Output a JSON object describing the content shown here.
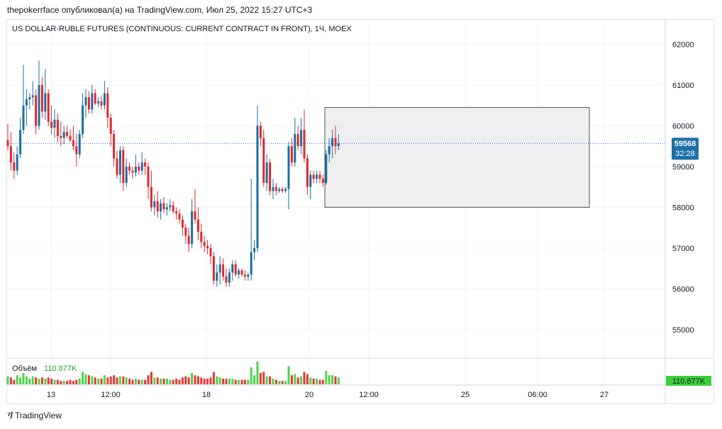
{
  "header": {
    "author": "thepokerrface",
    "published_text": "опубликовал(а) на TradingView.com, Июл 25, 2022 15:27 UTC+3"
  },
  "footer": {
    "logo_text": "TradingView"
  },
  "colors": {
    "up": "#26a69a",
    "up_body": "#1a6fa0",
    "down": "#e0282e",
    "grid": "#f0f3fa",
    "box_fill": "#e8e8ec",
    "box_stroke": "#555555",
    "price_line": "#2962ff",
    "price_tag": "#1e6fa8",
    "volume_up": "#4ed34e",
    "volume_down": "#e53935"
  },
  "chart_data": {
    "type": "candlestick",
    "title": "US DOLLAR-RUBLE FUTURES (CONTINUOUS: CURRENT CONTRACT IN FRONT), 1Ч, MOEX",
    "y_ticks": [
      62000,
      61000,
      60000,
      59000,
      58000,
      57000,
      56000,
      55000
    ],
    "ylim": [
      54300,
      62600
    ],
    "x_ticks": [
      "13",
      "12:00",
      "18",
      "20",
      "12:00",
      "25",
      "06:00",
      "27"
    ],
    "last_price": "59568",
    "countdown": "32:28",
    "volume_label": "Объём",
    "volume_value": "110.877K",
    "volume_tag": "110.877K",
    "box": {
      "y_top": 60450,
      "y_bottom": 58000
    },
    "candles": [
      [
        59650,
        60050,
        59400,
        59500
      ],
      [
        59500,
        59850,
        58900,
        59100
      ],
      [
        59100,
        59350,
        58700,
        58900
      ],
      [
        58900,
        59500,
        58800,
        59300
      ],
      [
        59300,
        60200,
        59200,
        59900
      ],
      [
        59900,
        61500,
        59800,
        60500
      ],
      [
        60500,
        60900,
        60000,
        60650
      ],
      [
        60650,
        60800,
        60400,
        60700
      ],
      [
        60700,
        61100,
        60500,
        60750
      ],
      [
        60750,
        60900,
        59800,
        60000
      ],
      [
        60000,
        61600,
        59900,
        61000
      ],
      [
        61000,
        61200,
        60200,
        60350
      ],
      [
        60350,
        61400,
        60150,
        60800
      ],
      [
        60800,
        60900,
        60000,
        60100
      ],
      [
        60100,
        60500,
        59800,
        59950
      ],
      [
        59950,
        60400,
        59700,
        60150
      ],
      [
        60150,
        60300,
        59600,
        59750
      ],
      [
        59750,
        60100,
        59500,
        59700
      ],
      [
        59700,
        60000,
        59550,
        59850
      ],
      [
        59850,
        60000,
        59700,
        59750
      ],
      [
        59750,
        59900,
        59600,
        59650
      ],
      [
        59650,
        60000,
        59400,
        59500
      ],
      [
        59500,
        59800,
        59000,
        59300
      ],
      [
        59300,
        59900,
        59200,
        59800
      ],
      [
        59800,
        60800,
        59700,
        60500
      ],
      [
        60500,
        60900,
        60200,
        60700
      ],
      [
        60700,
        60850,
        60300,
        60400
      ],
      [
        60400,
        61000,
        60300,
        60800
      ],
      [
        60800,
        60900,
        60500,
        60550
      ],
      [
        60550,
        60700,
        60450,
        60600
      ],
      [
        60600,
        60750,
        60400,
        60500
      ],
      [
        60500,
        61100,
        60400,
        60800
      ],
      [
        60800,
        60950,
        59950,
        60200
      ],
      [
        60200,
        60300,
        59500,
        59800
      ],
      [
        59800,
        59900,
        59000,
        59200
      ],
      [
        59200,
        59400,
        58700,
        58800
      ],
      [
        58800,
        59500,
        58600,
        59400
      ],
      [
        59400,
        59500,
        58400,
        58600
      ],
      [
        58600,
        59200,
        58500,
        59000
      ],
      [
        59000,
        59100,
        58800,
        58900
      ],
      [
        58900,
        59000,
        58700,
        58850
      ],
      [
        58850,
        59300,
        58750,
        59000
      ],
      [
        59000,
        59100,
        58800,
        58900
      ],
      [
        58900,
        59350,
        58800,
        59100
      ],
      [
        59100,
        59200,
        58800,
        59000
      ],
      [
        59000,
        59100,
        58200,
        58500
      ],
      [
        58500,
        58900,
        57900,
        58000
      ],
      [
        58000,
        58300,
        57800,
        58150
      ],
      [
        58150,
        58400,
        57750,
        57900
      ],
      [
        57900,
        58200,
        57700,
        58100
      ],
      [
        58100,
        58250,
        57850,
        57950
      ],
      [
        57950,
        58100,
        57800,
        58000
      ],
      [
        58000,
        58200,
        57900,
        58050
      ],
      [
        58050,
        58150,
        57850,
        57900
      ],
      [
        57900,
        58000,
        57700,
        57850
      ],
      [
        57850,
        57950,
        57600,
        57700
      ],
      [
        57700,
        57800,
        57300,
        57500
      ],
      [
        57500,
        57600,
        57100,
        57300
      ],
      [
        57300,
        57500,
        56900,
        57100
      ],
      [
        57100,
        58200,
        57000,
        57900
      ],
      [
        57900,
        58450,
        57600,
        57700
      ],
      [
        57700,
        58000,
        57200,
        57400
      ],
      [
        57400,
        57600,
        57000,
        57150
      ],
      [
        57150,
        57300,
        56900,
        57050
      ],
      [
        57050,
        57200,
        56850,
        57000
      ],
      [
        57000,
        57100,
        56600,
        56800
      ],
      [
        56800,
        56900,
        56100,
        56200
      ],
      [
        56200,
        56600,
        56050,
        56400
      ],
      [
        56400,
        56800,
        56100,
        56600
      ],
      [
        56600,
        56750,
        56200,
        56300
      ],
      [
        56300,
        56500,
        56050,
        56150
      ],
      [
        56150,
        56500,
        56050,
        56400
      ],
      [
        56400,
        56700,
        56200,
        56600
      ],
      [
        56600,
        56700,
        56300,
        56350
      ],
      [
        56350,
        56500,
        56250,
        56450
      ],
      [
        56450,
        56500,
        56300,
        56350
      ],
      [
        56350,
        56450,
        56200,
        56300
      ],
      [
        56300,
        56400,
        56200,
        56350
      ],
      [
        56350,
        58700,
        56200,
        56900
      ],
      [
        56900,
        57200,
        56700,
        57000
      ],
      [
        57000,
        60500,
        56900,
        60000
      ],
      [
        60000,
        60100,
        59500,
        59700
      ],
      [
        59700,
        59900,
        58500,
        58600
      ],
      [
        58600,
        59300,
        58400,
        59100
      ],
      [
        59100,
        59200,
        58300,
        58400
      ],
      [
        58400,
        58700,
        58200,
        58500
      ],
      [
        58500,
        58600,
        58300,
        58400
      ],
      [
        58400,
        58500,
        58350,
        58450
      ],
      [
        58450,
        58500,
        58350,
        58400
      ],
      [
        58400,
        58500,
        58350,
        58450
      ],
      [
        58450,
        59600,
        57950,
        59500
      ],
      [
        59500,
        59700,
        59000,
        59100
      ],
      [
        59100,
        60200,
        59000,
        59800
      ],
      [
        59800,
        60000,
        59400,
        59500
      ],
      [
        59500,
        60200,
        59300,
        59900
      ],
      [
        59900,
        60400,
        59100,
        59200
      ],
      [
        59200,
        59300,
        58300,
        58500
      ],
      [
        58500,
        58900,
        58200,
        58800
      ],
      [
        58800,
        58900,
        58600,
        58700
      ],
      [
        58700,
        58900,
        58600,
        58800
      ],
      [
        58800,
        58900,
        58600,
        58700
      ],
      [
        58700,
        58800,
        58500,
        58600
      ],
      [
        58600,
        59400,
        58550,
        59300
      ],
      [
        59300,
        59700,
        59100,
        59500
      ],
      [
        59500,
        59900,
        59200,
        59700
      ],
      [
        59700,
        60000,
        59300,
        59500
      ],
      [
        59500,
        59800,
        59400,
        59568
      ]
    ],
    "volumes": [
      [
        0.35,
        "up"
      ],
      [
        0.3,
        "down"
      ],
      [
        0.2,
        "down"
      ],
      [
        0.4,
        "up"
      ],
      [
        0.3,
        "up"
      ],
      [
        0.5,
        "up"
      ],
      [
        0.35,
        "up"
      ],
      [
        0.25,
        "up"
      ],
      [
        0.35,
        "up"
      ],
      [
        0.3,
        "down"
      ],
      [
        0.25,
        "up"
      ],
      [
        0.3,
        "down"
      ],
      [
        0.25,
        "up"
      ],
      [
        0.3,
        "down"
      ],
      [
        0.25,
        "down"
      ],
      [
        0.2,
        "up"
      ],
      [
        0.2,
        "down"
      ],
      [
        0.15,
        "down"
      ],
      [
        0.15,
        "up"
      ],
      [
        0.15,
        "down"
      ],
      [
        0.2,
        "down"
      ],
      [
        0.15,
        "down"
      ],
      [
        0.2,
        "down"
      ],
      [
        0.25,
        "up"
      ],
      [
        0.55,
        "up"
      ],
      [
        0.45,
        "up"
      ],
      [
        0.4,
        "down"
      ],
      [
        0.35,
        "up"
      ],
      [
        0.3,
        "down"
      ],
      [
        0.25,
        "up"
      ],
      [
        0.25,
        "down"
      ],
      [
        0.4,
        "up"
      ],
      [
        0.3,
        "down"
      ],
      [
        0.35,
        "down"
      ],
      [
        0.4,
        "down"
      ],
      [
        0.3,
        "down"
      ],
      [
        0.35,
        "up"
      ],
      [
        0.35,
        "down"
      ],
      [
        0.3,
        "up"
      ],
      [
        0.25,
        "down"
      ],
      [
        0.2,
        "down"
      ],
      [
        0.25,
        "up"
      ],
      [
        0.2,
        "down"
      ],
      [
        0.2,
        "up"
      ],
      [
        0.2,
        "down"
      ],
      [
        0.4,
        "down"
      ],
      [
        0.55,
        "down"
      ],
      [
        0.3,
        "up"
      ],
      [
        0.3,
        "down"
      ],
      [
        0.25,
        "up"
      ],
      [
        0.25,
        "down"
      ],
      [
        0.25,
        "up"
      ],
      [
        0.2,
        "up"
      ],
      [
        0.2,
        "down"
      ],
      [
        0.25,
        "down"
      ],
      [
        0.2,
        "down"
      ],
      [
        0.3,
        "down"
      ],
      [
        0.35,
        "down"
      ],
      [
        0.3,
        "down"
      ],
      [
        0.5,
        "up"
      ],
      [
        0.4,
        "down"
      ],
      [
        0.35,
        "down"
      ],
      [
        0.3,
        "down"
      ],
      [
        0.25,
        "down"
      ],
      [
        0.25,
        "down"
      ],
      [
        0.3,
        "down"
      ],
      [
        0.55,
        "down"
      ],
      [
        0.35,
        "up"
      ],
      [
        0.3,
        "up"
      ],
      [
        0.25,
        "down"
      ],
      [
        0.25,
        "down"
      ],
      [
        0.25,
        "up"
      ],
      [
        0.25,
        "up"
      ],
      [
        0.2,
        "down"
      ],
      [
        0.2,
        "up"
      ],
      [
        0.2,
        "down"
      ],
      [
        0.2,
        "down"
      ],
      [
        0.2,
        "up"
      ],
      [
        0.75,
        "up"
      ],
      [
        0.4,
        "up"
      ],
      [
        1.0,
        "up"
      ],
      [
        0.5,
        "down"
      ],
      [
        0.55,
        "down"
      ],
      [
        0.35,
        "up"
      ],
      [
        0.35,
        "down"
      ],
      [
        0.25,
        "up"
      ],
      [
        0.2,
        "down"
      ],
      [
        0.15,
        "up"
      ],
      [
        0.15,
        "down"
      ],
      [
        0.15,
        "up"
      ],
      [
        0.8,
        "up"
      ],
      [
        0.4,
        "down"
      ],
      [
        0.45,
        "up"
      ],
      [
        0.3,
        "down"
      ],
      [
        0.35,
        "up"
      ],
      [
        0.55,
        "down"
      ],
      [
        0.45,
        "down"
      ],
      [
        0.3,
        "up"
      ],
      [
        0.25,
        "down"
      ],
      [
        0.25,
        "up"
      ],
      [
        0.2,
        "down"
      ],
      [
        0.2,
        "down"
      ],
      [
        0.6,
        "up"
      ],
      [
        0.4,
        "up"
      ],
      [
        0.4,
        "up"
      ],
      [
        0.35,
        "down"
      ],
      [
        0.3,
        "up"
      ]
    ]
  }
}
